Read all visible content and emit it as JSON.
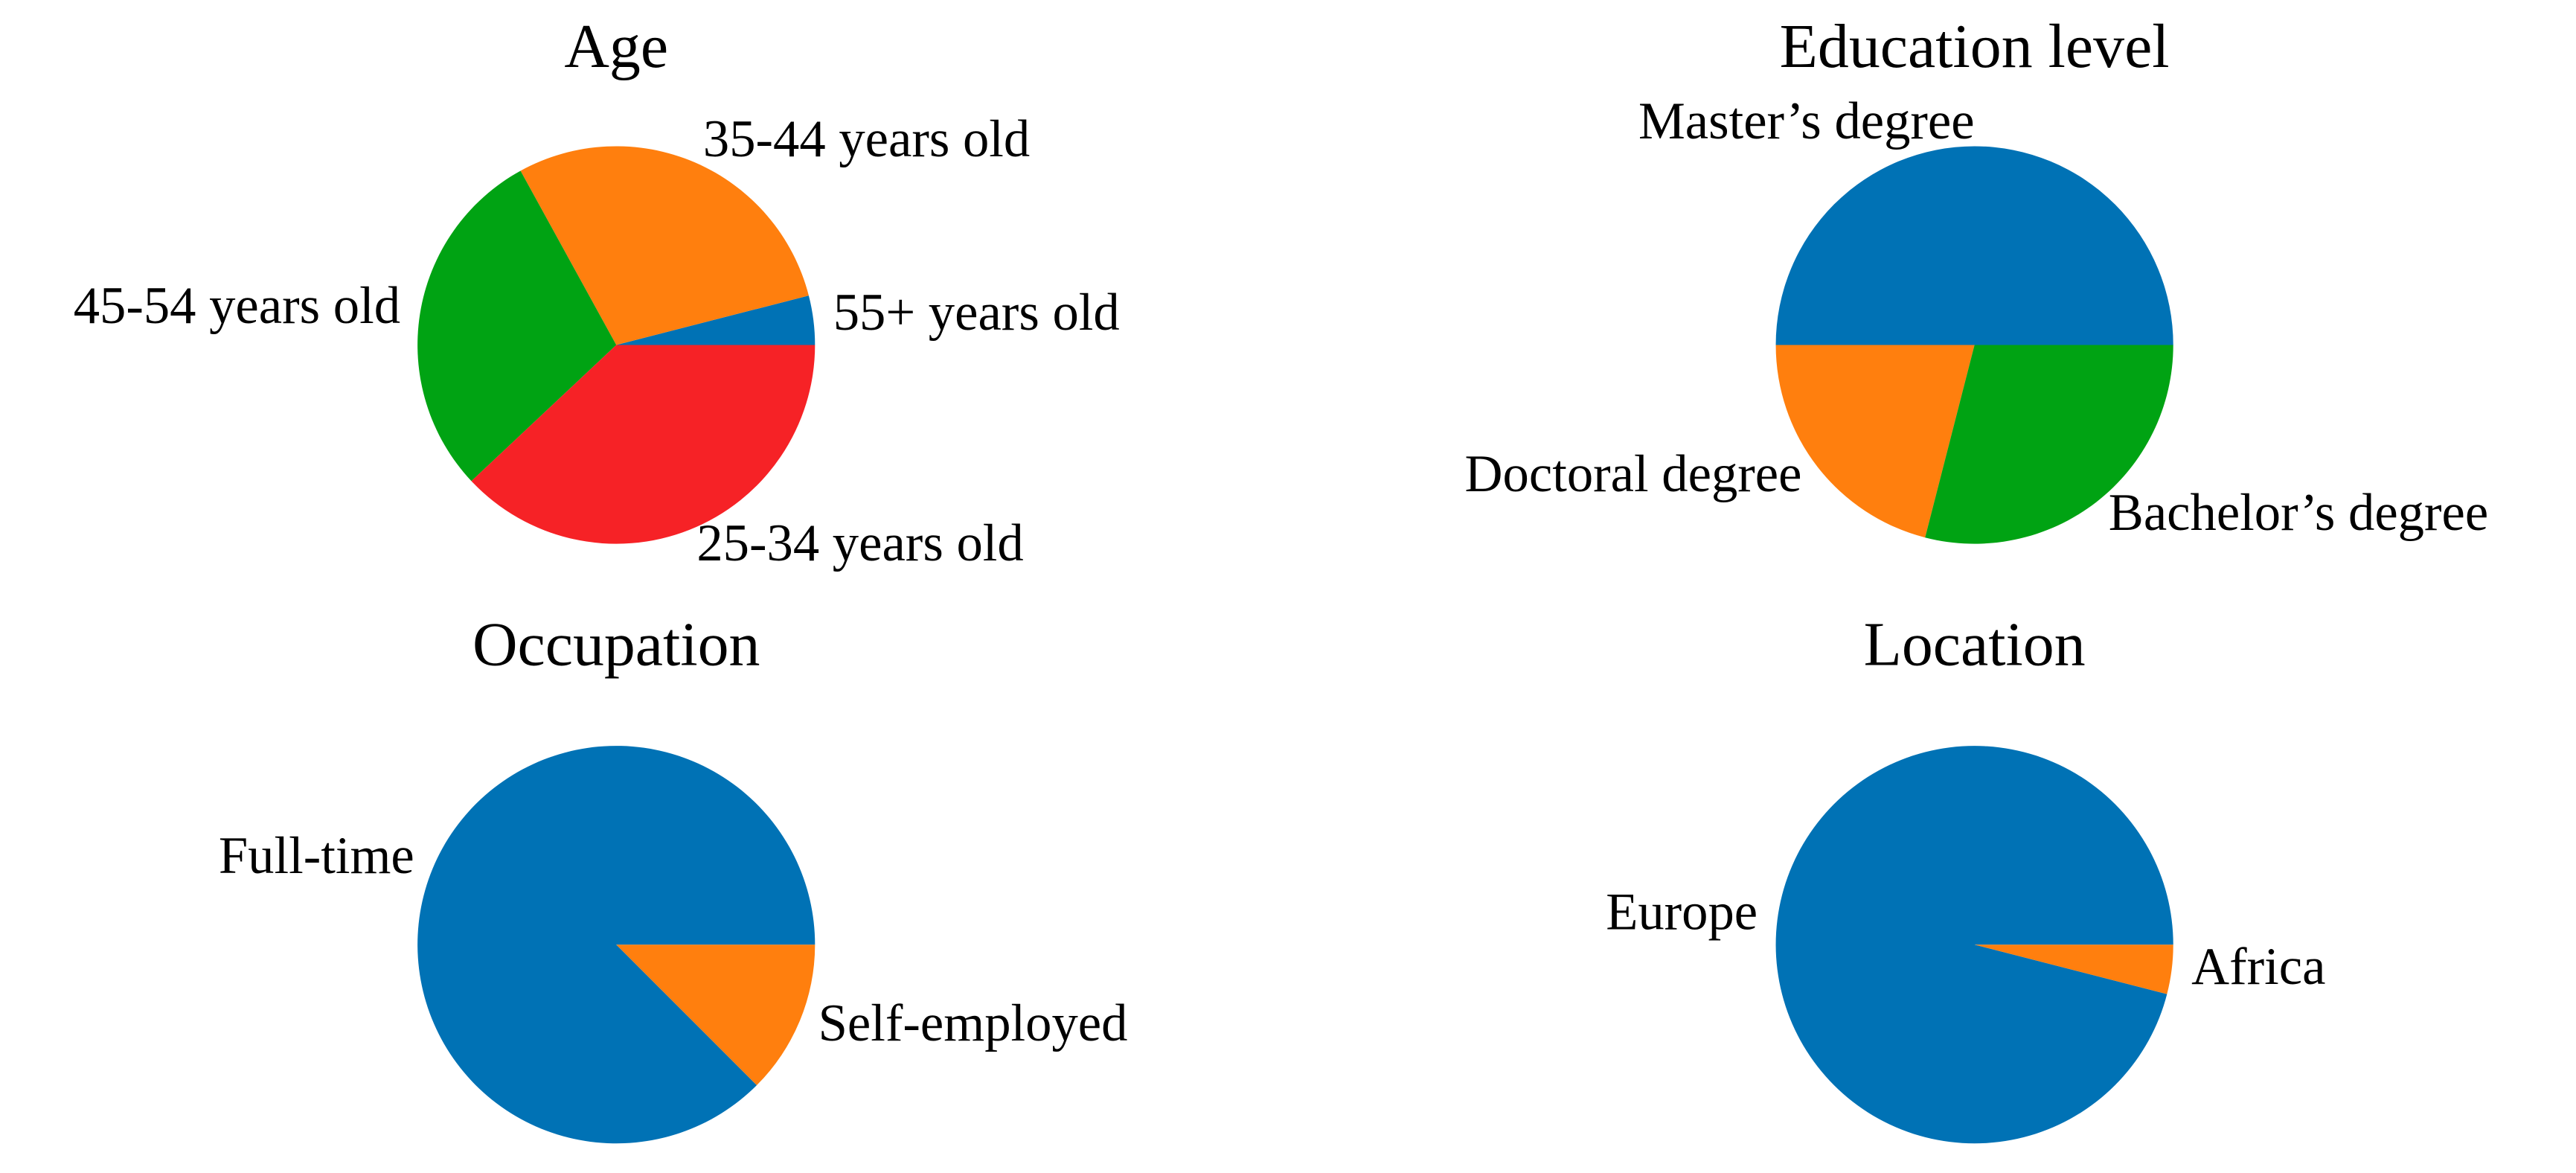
{
  "chart_data": [
    {
      "type": "pie",
      "title": "Age",
      "categories": [
        "55+ years old",
        "35-44 years old",
        "45-54 years old",
        "25-34 years old"
      ],
      "values": [
        4,
        29,
        29,
        38
      ],
      "colors": [
        "#0072b5",
        "#ff7f0e",
        "#00a313",
        "#f62226"
      ]
    },
    {
      "type": "pie",
      "title": "Education level",
      "categories": [
        "Master’s degree",
        "Doctoral degree",
        "Bachelor’s degree"
      ],
      "values": [
        50,
        21,
        29
      ],
      "colors": [
        "#0072b5",
        "#ff7f0e",
        "#00a313"
      ]
    },
    {
      "type": "pie",
      "title": "Occupation",
      "categories": [
        "Full-time",
        "Self-employed"
      ],
      "values": [
        87.5,
        12.5
      ],
      "colors": [
        "#0072b5",
        "#ff7f0e"
      ]
    },
    {
      "type": "pie",
      "title": "Location",
      "categories": [
        "Europe",
        "Africa"
      ],
      "values": [
        96,
        4
      ],
      "colors": [
        "#0072b5",
        "#ff7f0e"
      ]
    }
  ]
}
